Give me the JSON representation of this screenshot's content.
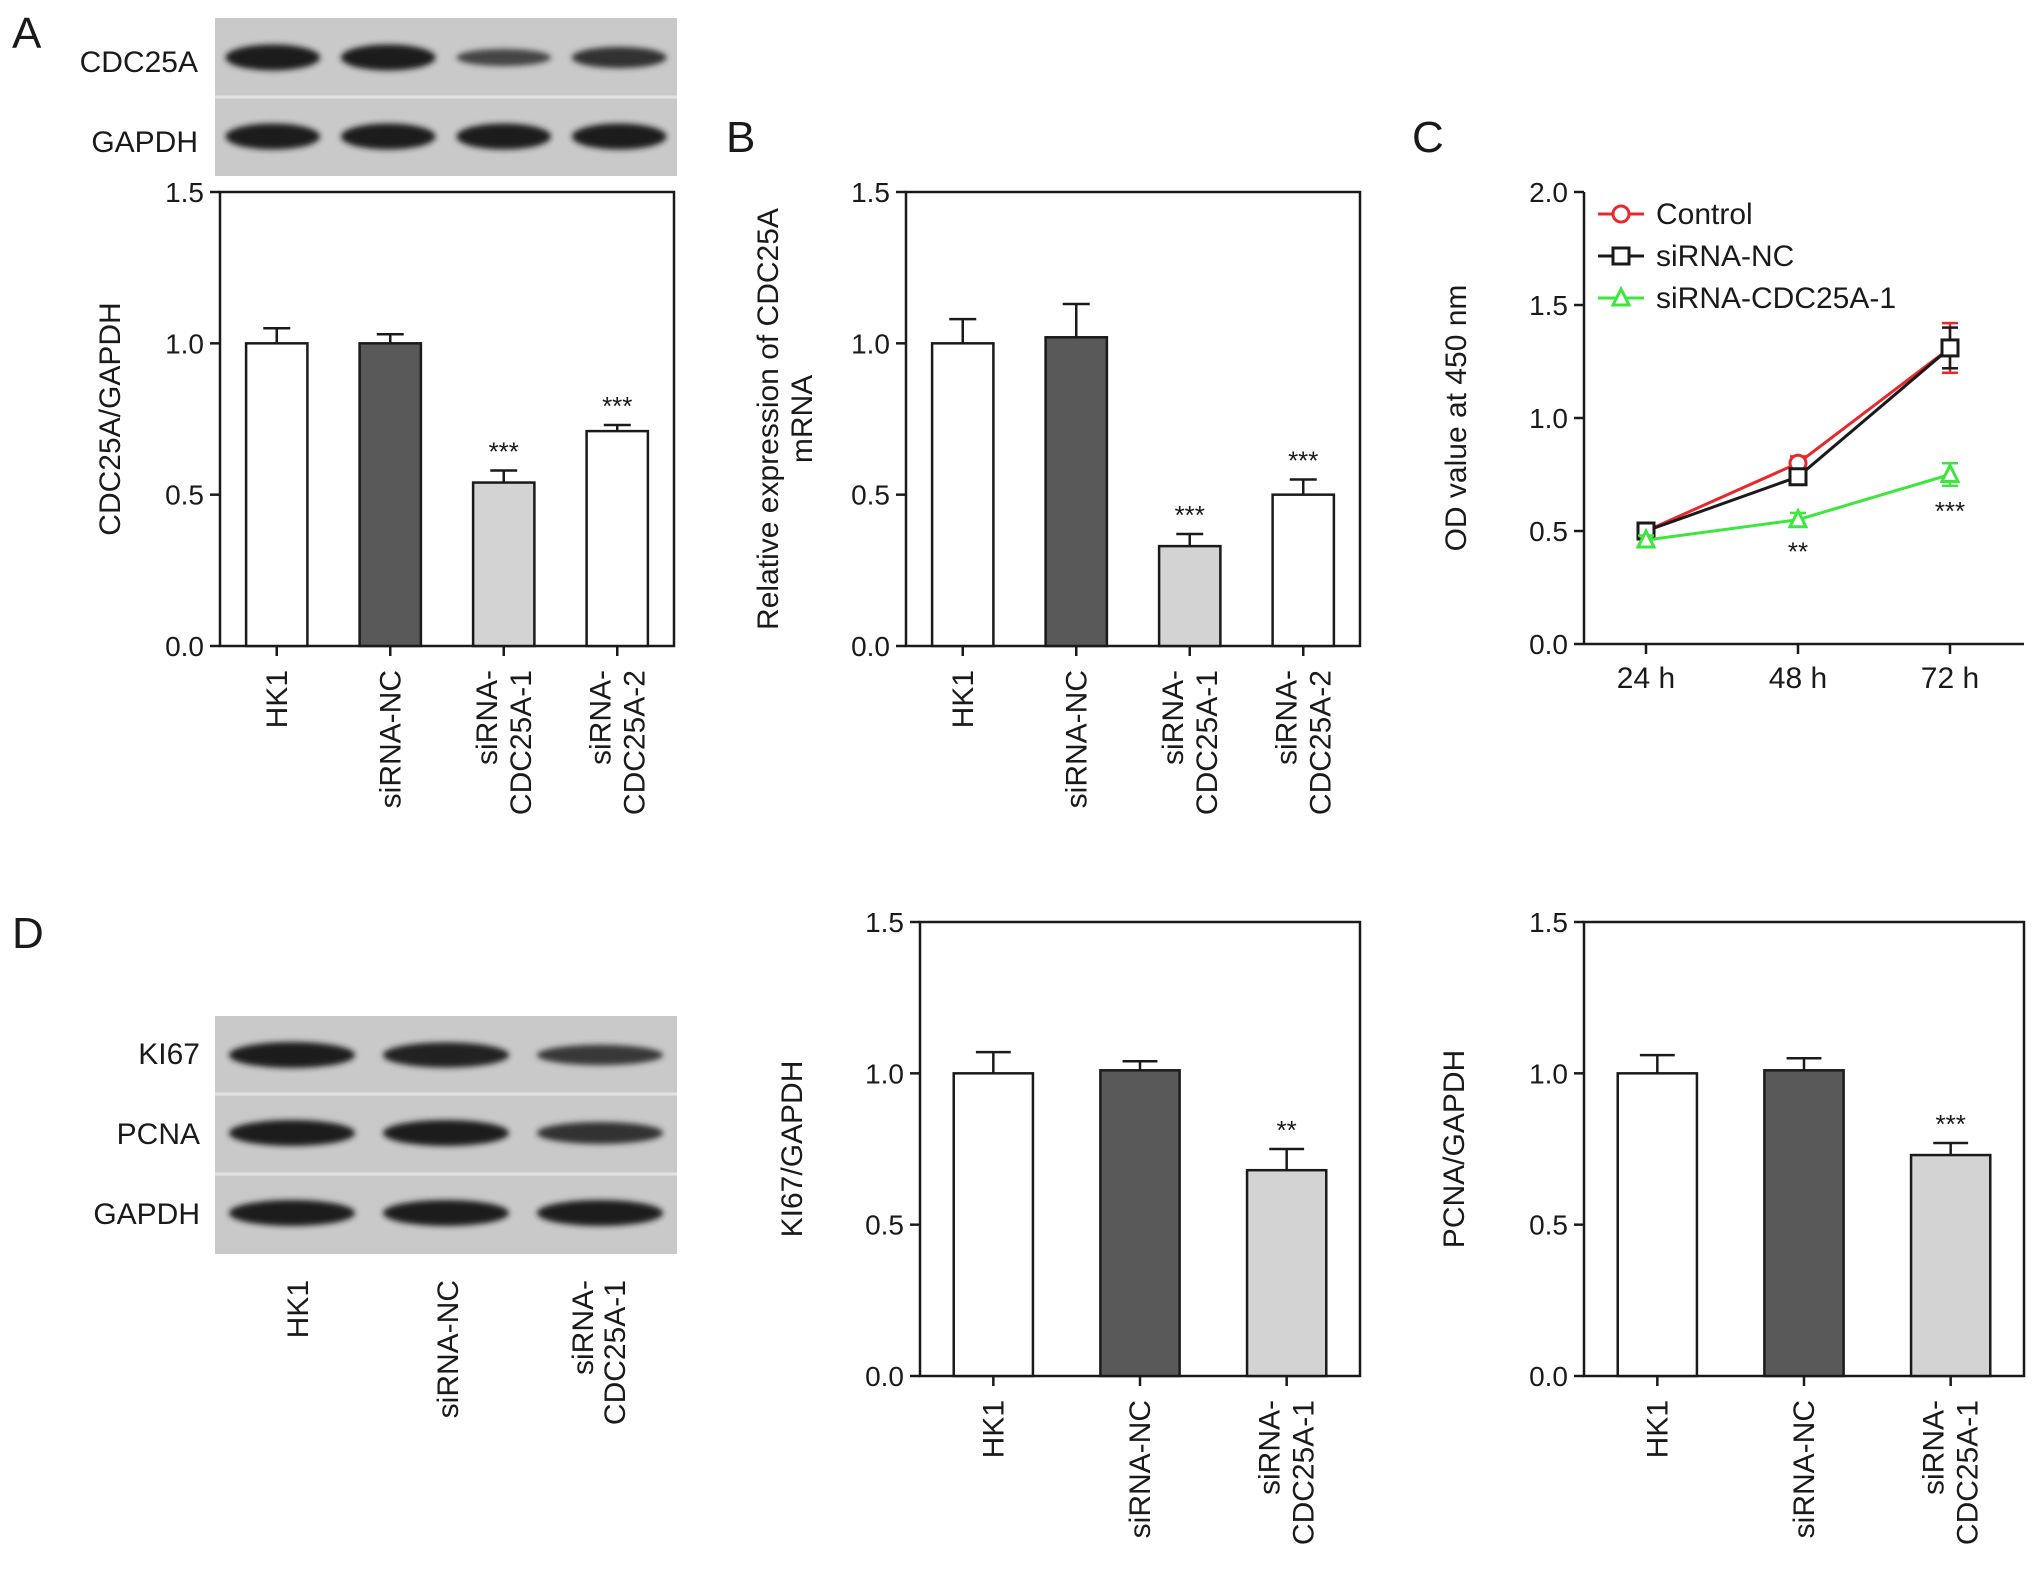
{
  "panels": {
    "A": "A",
    "B": "B",
    "C": "C",
    "D": "D"
  },
  "blots": {
    "A": {
      "rows": [
        "CDC25A",
        "GAPDH"
      ],
      "bands": [
        [
          1.0,
          1.0,
          0.45,
          0.7
        ],
        [
          1.0,
          1.0,
          1.0,
          1.0
        ]
      ]
    },
    "D": {
      "rows": [
        "KI67",
        "PCNA",
        "GAPDH"
      ],
      "lanes": [
        "HK1",
        "siRNA-NC",
        "siRNA-CDC25A-1"
      ],
      "bands": [
        [
          1.0,
          0.95,
          0.65
        ],
        [
          1.0,
          1.0,
          0.75
        ],
        [
          1.0,
          1.0,
          1.0
        ]
      ]
    }
  },
  "colors": {
    "white_bar": "#ffffff",
    "dark_bar": "#595959",
    "light_bar": "#d3d3d3",
    "control": "#e8282b",
    "sirna_nc": "#1a1a1a",
    "sirna_cdc25a": "#3ce63c"
  },
  "chart_data": [
    {
      "id": "A",
      "type": "bar",
      "categories": [
        "HK1",
        "siRNA-NC",
        "siRNA-CDC25A-1",
        "siRNA-CDC25A-2"
      ],
      "values": [
        1.0,
        1.0,
        0.54,
        0.71
      ],
      "errors": [
        0.05,
        0.03,
        0.04,
        0.02
      ],
      "significance": [
        "",
        "",
        "***",
        "***"
      ],
      "fills": [
        "white",
        "dark",
        "light",
        "white"
      ],
      "ylabel": "CDC25A/GAPDH",
      "ylim": [
        0,
        1.5
      ],
      "yticks": [
        "0.0",
        "0.5",
        "1.0",
        "1.5"
      ]
    },
    {
      "id": "B",
      "type": "bar",
      "categories": [
        "HK1",
        "siRNA-NC",
        "siRNA-CDC25A-1",
        "siRNA-CDC25A-2"
      ],
      "values": [
        1.0,
        1.02,
        0.33,
        0.5
      ],
      "errors": [
        0.08,
        0.11,
        0.04,
        0.05
      ],
      "significance": [
        "",
        "",
        "***",
        "***"
      ],
      "fills": [
        "white",
        "dark",
        "light",
        "white"
      ],
      "ylabel": "Relative expression of CDC25A",
      "ylabel2": "mRNA",
      "ylim": [
        0,
        1.5
      ],
      "yticks": [
        "0.0",
        "0.5",
        "1.0",
        "1.5"
      ]
    },
    {
      "id": "C",
      "type": "line",
      "x": [
        "24 h",
        "48 h",
        "72 h"
      ],
      "series": [
        {
          "name": "Control",
          "values": [
            0.5,
            0.8,
            1.31
          ],
          "errors": [
            0.02,
            0.03,
            0.11
          ],
          "marker": "circle"
        },
        {
          "name": "siRNA-NC",
          "values": [
            0.5,
            0.74,
            1.31
          ],
          "errors": [
            0.02,
            0.03,
            0.09
          ],
          "marker": "square"
        },
        {
          "name": "siRNA-CDC25A-1",
          "values": [
            0.46,
            0.55,
            0.75
          ],
          "errors": [
            0.02,
            0.03,
            0.05
          ],
          "marker": "triangle"
        }
      ],
      "significance": [
        "",
        "**",
        "***"
      ],
      "ylabel": "OD value at 450 nm",
      "ylim": [
        0,
        2.0
      ],
      "yticks": [
        "0.0",
        "0.5",
        "1.0",
        "1.5",
        "2.0"
      ],
      "legend": "top-left"
    },
    {
      "id": "D1",
      "type": "bar",
      "categories": [
        "HK1",
        "siRNA-NC",
        "siRNA-CDC25A-1"
      ],
      "values": [
        1.0,
        1.01,
        0.68
      ],
      "errors": [
        0.07,
        0.03,
        0.07
      ],
      "significance": [
        "",
        "",
        "**"
      ],
      "fills": [
        "white",
        "dark",
        "light"
      ],
      "ylabel": "KI67/GAPDH",
      "ylim": [
        0,
        1.5
      ],
      "yticks": [
        "0.0",
        "0.5",
        "1.0",
        "1.5"
      ]
    },
    {
      "id": "D2",
      "type": "bar",
      "categories": [
        "HK1",
        "siRNA-NC",
        "siRNA-CDC25A-1"
      ],
      "values": [
        1.0,
        1.01,
        0.73
      ],
      "errors": [
        0.06,
        0.04,
        0.04
      ],
      "significance": [
        "",
        "",
        "***"
      ],
      "fills": [
        "white",
        "dark",
        "light"
      ],
      "ylabel": "PCNA/GAPDH",
      "ylim": [
        0,
        1.5
      ],
      "yticks": [
        "0.0",
        "0.5",
        "1.0",
        "1.5"
      ]
    }
  ]
}
